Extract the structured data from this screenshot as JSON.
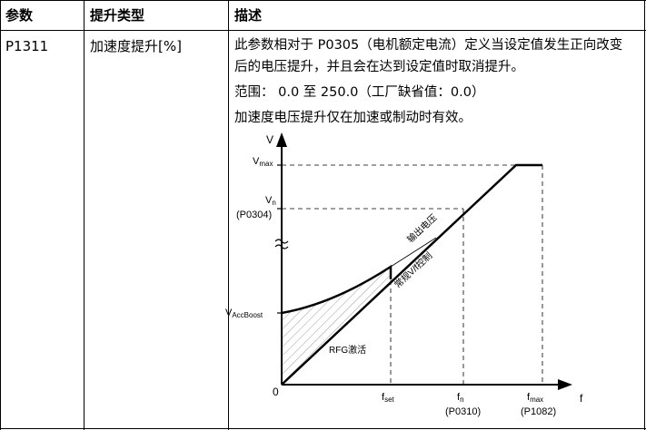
{
  "table": {
    "headers": {
      "param": "参数",
      "type": "提升类型",
      "desc": "描述"
    },
    "row": {
      "param": "P1311",
      "type": "加速度提升[%]",
      "desc_line1": "此参数相对于 P0305（电机额定电流）定义当设定值发生正向改变",
      "desc_line2": "后的电压提升，并且会在达到设定值时取消提升。",
      "range": "范围： 0.0 至 250.0（工厂缺省值：0.0）",
      "note": "加速度电压提升仅在加速或制动时有效。"
    }
  },
  "diagram": {
    "y_axis": "V",
    "x_axis": "f",
    "origin": "0",
    "vmax": "V",
    "vmax_sub": "max",
    "vn": "V",
    "vn_sub": "n",
    "vn_param": "(P0304)",
    "vboost": "V",
    "vboost_sub": "AccBoost",
    "fset": "f",
    "fset_sub": "set",
    "fn": "f",
    "fn_sub": "n",
    "fn_param": "(P0310)",
    "fmax": "f",
    "fmax_sub": "max",
    "fmax_param": "(P1082)",
    "label_output": "输出电压",
    "label_normal": "常规V/f控制",
    "label_rfg": "RFG激活"
  }
}
